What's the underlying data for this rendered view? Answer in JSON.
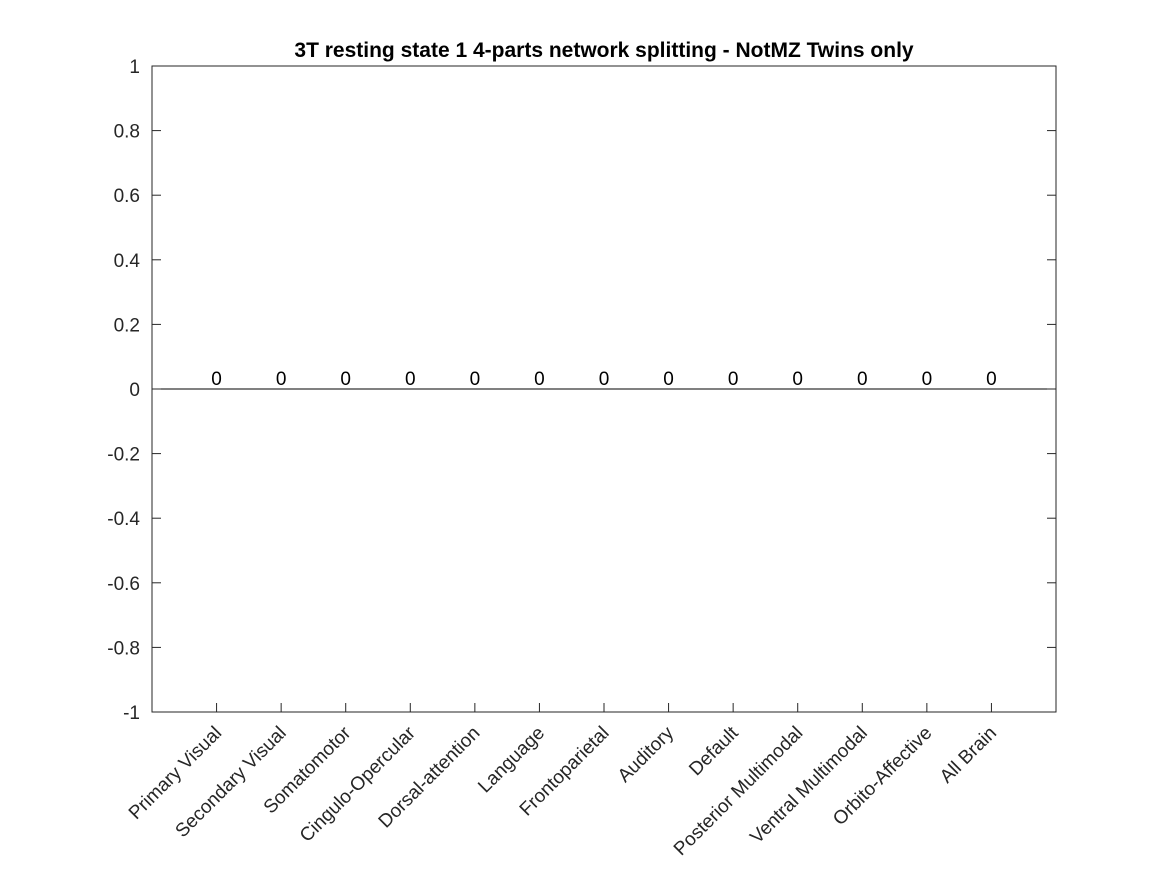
{
  "chart_data": {
    "type": "bar",
    "title": "3T resting state 1 4-parts network splitting - NotMZ Twins only",
    "xlabel": "",
    "ylabel": "",
    "categories": [
      "Primary Visual",
      "Secondary Visual",
      "Somatomotor",
      "Cingulo-Opercular",
      "Dorsal-attention",
      "Language",
      "Frontoparietal",
      "Auditory",
      "Default",
      "Posterior Multimodal",
      "Ventral Multimodal",
      "Orbito-Affective",
      "All Brain"
    ],
    "values": [
      0,
      0,
      0,
      0,
      0,
      0,
      0,
      0,
      0,
      0,
      0,
      0,
      0
    ],
    "value_labels": [
      "0",
      "0",
      "0",
      "0",
      "0",
      "0",
      "0",
      "0",
      "0",
      "0",
      "0",
      "0",
      "0"
    ],
    "ylim": [
      -1,
      1
    ],
    "yticks": [
      -1,
      -0.8,
      -0.6,
      -0.4,
      -0.2,
      0,
      0.2,
      0.4,
      0.6,
      0.8,
      1
    ],
    "ytick_labels": [
      "-1",
      "-0.8",
      "-0.6",
      "-0.4",
      "-0.2",
      "0",
      "0.2",
      "0.4",
      "0.6",
      "0.8",
      "1"
    ],
    "xlim": [
      0,
      14
    ],
    "grid": false,
    "legend": "none",
    "colors": {
      "axis": "#262626",
      "bar": "#0072bd",
      "text": "#000000"
    }
  }
}
